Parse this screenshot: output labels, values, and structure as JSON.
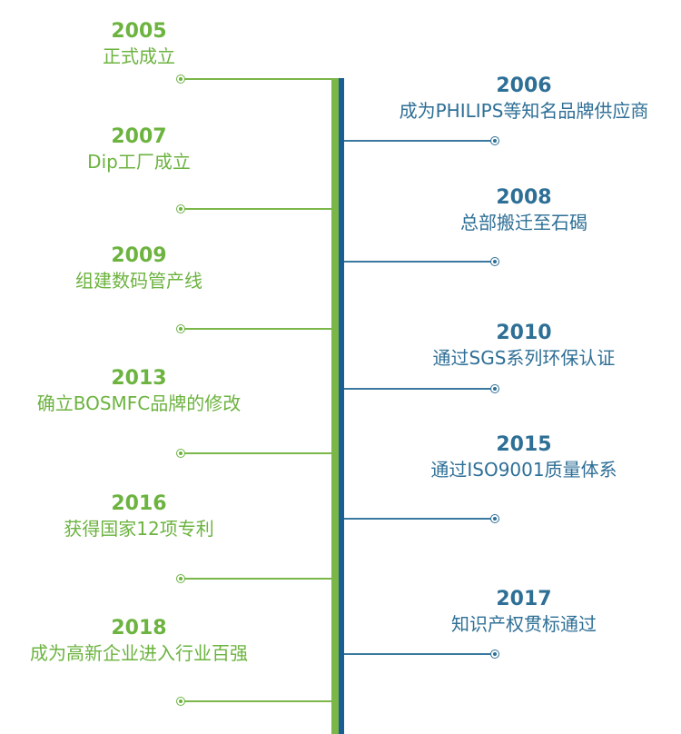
{
  "colors": {
    "left_accent": "#6cb33f",
    "right_accent": "#2e6f96",
    "bar_green": "#7ab648",
    "bar_blue": "#1a5e94"
  },
  "left": [
    {
      "year": "2005",
      "text": "正式成立"
    },
    {
      "year": "2007",
      "text": "Dip工厂成立"
    },
    {
      "year": "2009",
      "text": "组建数码管产线"
    },
    {
      "year": "2013",
      "text": "确立BOSMFC品牌的修改"
    },
    {
      "year": "2016",
      "text": "获得国家12项专利"
    },
    {
      "year": "2018",
      "text": "成为高新企业进入行业百强"
    }
  ],
  "right": [
    {
      "year": "2006",
      "text": "成为PHILIPS等知名品牌供应商"
    },
    {
      "year": "2008",
      "text": "总部搬迁至石碣"
    },
    {
      "year": "2010",
      "text": "通过SGS系列环保认证"
    },
    {
      "year": "2015",
      "text": "通过ISO9001质量体系"
    },
    {
      "year": "2017",
      "text": "知识产权贯标通过"
    }
  ]
}
